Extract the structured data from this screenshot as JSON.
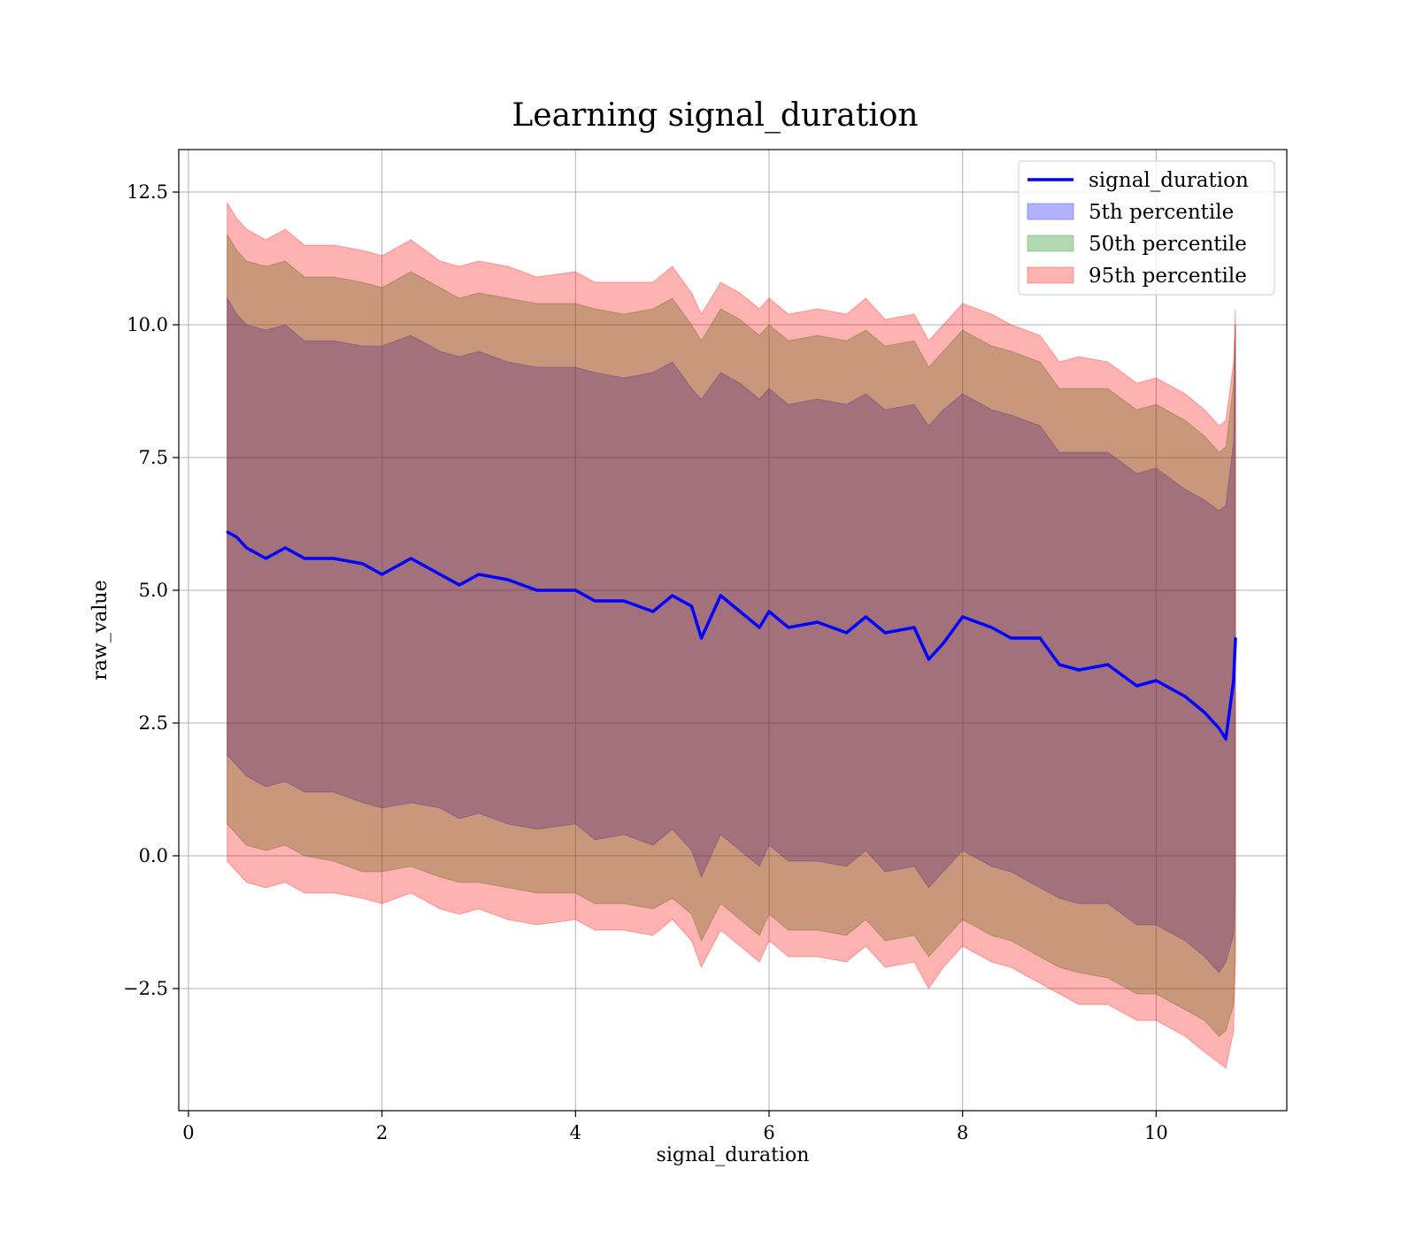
{
  "chart_data": {
    "type": "area",
    "title": "Learning signal_duration",
    "xlabel": "signal_duration",
    "ylabel": "raw_value",
    "xlim": [
      -0.1,
      11.35
    ],
    "ylim": [
      -4.8,
      13.3
    ],
    "x_ticks": [
      {
        "value": 0,
        "label": "0"
      },
      {
        "value": 2,
        "label": "2"
      },
      {
        "value": 4,
        "label": "4"
      },
      {
        "value": 6,
        "label": "6"
      },
      {
        "value": 8,
        "label": "8"
      },
      {
        "value": 10,
        "label": "10"
      }
    ],
    "y_ticks": [
      {
        "value": -2.5,
        "label": "−2.5"
      },
      {
        "value": 0.0,
        "label": "0.0"
      },
      {
        "value": 2.5,
        "label": "2.5"
      },
      {
        "value": 5.0,
        "label": "5.0"
      },
      {
        "value": 7.5,
        "label": "7.5"
      },
      {
        "value": 10.0,
        "label": "10.0"
      },
      {
        "value": 12.5,
        "label": "12.5"
      }
    ],
    "grid": true,
    "legend_position": "top-right",
    "x": [
      0.4,
      0.5,
      0.6,
      0.8,
      1.0,
      1.2,
      1.5,
      1.8,
      2.0,
      2.3,
      2.6,
      2.8,
      3.0,
      3.3,
      3.6,
      4.0,
      4.2,
      4.5,
      4.8,
      5.0,
      5.2,
      5.3,
      5.5,
      5.7,
      5.9,
      6.0,
      6.2,
      6.5,
      6.8,
      7.0,
      7.2,
      7.5,
      7.65,
      7.8,
      8.0,
      8.3,
      8.5,
      8.8,
      9.0,
      9.2,
      9.5,
      9.8,
      10.0,
      10.3,
      10.5,
      10.65,
      10.72,
      10.8,
      10.82
    ],
    "series": [
      {
        "name": "signal_duration",
        "kind": "line",
        "color": "#0000ff",
        "values": [
          6.1,
          6.0,
          5.8,
          5.6,
          5.8,
          5.6,
          5.6,
          5.5,
          5.3,
          5.6,
          5.3,
          5.1,
          5.3,
          5.2,
          5.0,
          5.0,
          4.8,
          4.8,
          4.6,
          4.9,
          4.7,
          4.1,
          4.9,
          4.6,
          4.3,
          4.6,
          4.3,
          4.4,
          4.2,
          4.5,
          4.2,
          4.3,
          3.7,
          4.0,
          4.5,
          4.3,
          4.1,
          4.1,
          3.6,
          3.5,
          3.6,
          3.2,
          3.3,
          3.0,
          2.7,
          2.4,
          2.2,
          3.3,
          4.1
        ]
      },
      {
        "name": "5th percentile",
        "kind": "band",
        "color": "#0000ff",
        "upper": [
          10.5,
          10.2,
          10.0,
          9.9,
          10.0,
          9.7,
          9.7,
          9.6,
          9.6,
          9.8,
          9.5,
          9.4,
          9.5,
          9.3,
          9.2,
          9.2,
          9.1,
          9.0,
          9.1,
          9.3,
          8.8,
          8.6,
          9.1,
          8.9,
          8.6,
          8.8,
          8.5,
          8.6,
          8.5,
          8.7,
          8.4,
          8.5,
          8.1,
          8.4,
          8.7,
          8.4,
          8.3,
          8.1,
          7.6,
          7.6,
          7.6,
          7.2,
          7.3,
          6.9,
          6.7,
          6.5,
          6.6,
          7.8,
          10.0
        ],
        "lower": [
          1.9,
          1.7,
          1.5,
          1.3,
          1.4,
          1.2,
          1.2,
          1.0,
          0.9,
          1.0,
          0.9,
          0.7,
          0.8,
          0.6,
          0.5,
          0.6,
          0.3,
          0.4,
          0.2,
          0.5,
          0.1,
          -0.4,
          0.4,
          0.1,
          -0.2,
          0.2,
          -0.1,
          -0.1,
          -0.2,
          0.1,
          -0.3,
          -0.2,
          -0.6,
          -0.3,
          0.1,
          -0.2,
          -0.3,
          -0.6,
          -0.8,
          -0.9,
          -0.9,
          -1.3,
          -1.3,
          -1.6,
          -1.9,
          -2.2,
          -2.0,
          -1.5,
          -0.5
        ]
      },
      {
        "name": "50th percentile",
        "kind": "band",
        "color": "#008000",
        "upper": [
          11.7,
          11.4,
          11.2,
          11.1,
          11.2,
          10.9,
          10.9,
          10.8,
          10.7,
          11.0,
          10.7,
          10.5,
          10.6,
          10.5,
          10.4,
          10.4,
          10.3,
          10.2,
          10.3,
          10.5,
          10.0,
          9.7,
          10.3,
          10.1,
          9.8,
          10.0,
          9.7,
          9.8,
          9.7,
          9.9,
          9.6,
          9.7,
          9.2,
          9.5,
          9.9,
          9.6,
          9.5,
          9.3,
          8.8,
          8.8,
          8.8,
          8.4,
          8.5,
          8.2,
          7.9,
          7.6,
          7.7,
          8.9,
          10.0
        ],
        "lower": [
          0.6,
          0.4,
          0.2,
          0.1,
          0.2,
          0.0,
          -0.1,
          -0.3,
          -0.3,
          -0.2,
          -0.4,
          -0.5,
          -0.5,
          -0.6,
          -0.7,
          -0.7,
          -0.9,
          -0.9,
          -1.0,
          -0.8,
          -1.1,
          -1.6,
          -0.9,
          -1.2,
          -1.5,
          -1.1,
          -1.4,
          -1.4,
          -1.5,
          -1.2,
          -1.6,
          -1.5,
          -1.9,
          -1.6,
          -1.2,
          -1.5,
          -1.6,
          -1.9,
          -2.1,
          -2.2,
          -2.3,
          -2.6,
          -2.6,
          -2.9,
          -3.1,
          -3.4,
          -3.3,
          -2.8,
          -1.6
        ]
      },
      {
        "name": "95th percentile",
        "kind": "band",
        "color": "#ff0000",
        "upper": [
          12.3,
          12.0,
          11.8,
          11.6,
          11.8,
          11.5,
          11.5,
          11.4,
          11.3,
          11.6,
          11.2,
          11.1,
          11.2,
          11.1,
          10.9,
          11.0,
          10.8,
          10.8,
          10.8,
          11.1,
          10.6,
          10.2,
          10.8,
          10.6,
          10.3,
          10.5,
          10.2,
          10.3,
          10.2,
          10.5,
          10.1,
          10.2,
          9.7,
          10.0,
          10.4,
          10.2,
          10.0,
          9.8,
          9.3,
          9.4,
          9.3,
          8.9,
          9.0,
          8.7,
          8.4,
          8.1,
          8.2,
          9.3,
          10.3
        ],
        "lower": [
          -0.1,
          -0.3,
          -0.5,
          -0.6,
          -0.5,
          -0.7,
          -0.7,
          -0.8,
          -0.9,
          -0.7,
          -1.0,
          -1.1,
          -1.0,
          -1.2,
          -1.3,
          -1.2,
          -1.4,
          -1.4,
          -1.5,
          -1.2,
          -1.6,
          -2.1,
          -1.4,
          -1.7,
          -2.0,
          -1.6,
          -1.9,
          -1.9,
          -2.0,
          -1.7,
          -2.1,
          -2.0,
          -2.5,
          -2.1,
          -1.7,
          -2.0,
          -2.1,
          -2.4,
          -2.6,
          -2.8,
          -2.8,
          -3.1,
          -3.1,
          -3.4,
          -3.7,
          -3.9,
          -4.0,
          -3.3,
          -2.0
        ]
      }
    ],
    "legend": [
      {
        "label": "signal_duration",
        "kind": "line",
        "color": "#0000ff"
      },
      {
        "label": "5th percentile",
        "kind": "patch",
        "color": "#0000ff"
      },
      {
        "label": "50th percentile",
        "kind": "patch",
        "color": "#008000"
      },
      {
        "label": "95th percentile",
        "kind": "patch",
        "color": "#ff0000"
      }
    ]
  }
}
